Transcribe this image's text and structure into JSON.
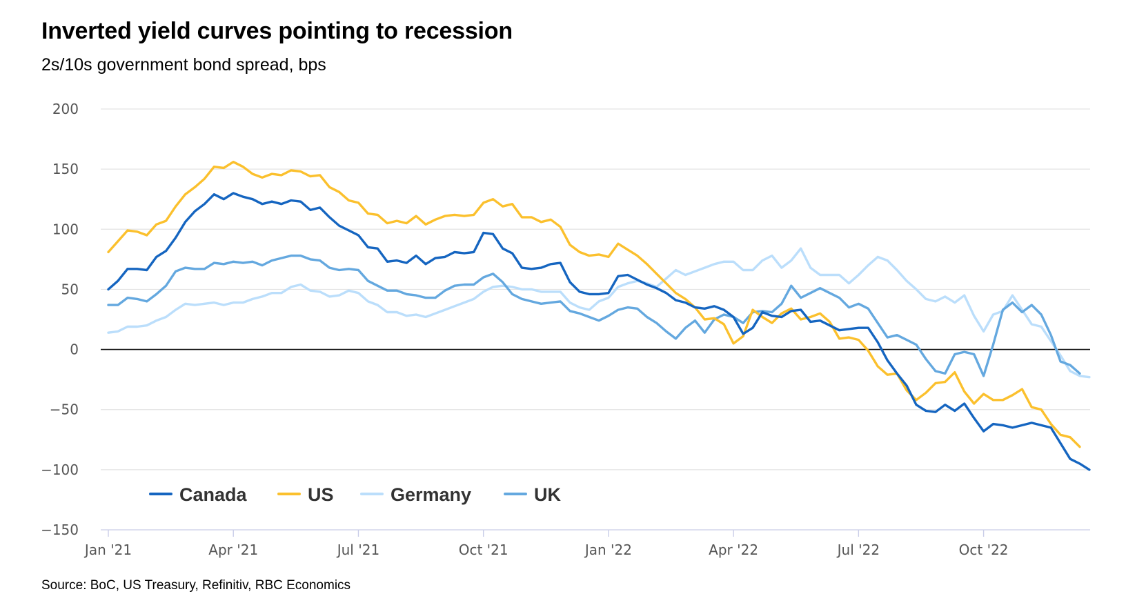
{
  "title": "Inverted yield curves pointing to recession",
  "subtitle": "2s/10s government bond spread, bps",
  "source": "Source: BoC, US Treasury, Refinitiv, RBC Economics",
  "chart_data": {
    "type": "line",
    "title": "Inverted yield curves pointing to recession",
    "subtitle": "2s/10s government bond spread, bps",
    "ylim": [
      -150,
      200
    ],
    "yticks": [
      -150,
      -100,
      -50,
      0,
      50,
      100,
      150,
      200
    ],
    "ytick_labels": [
      "−150",
      "−100",
      "−50",
      "0",
      "50",
      "100",
      "150",
      "200"
    ],
    "xlim": [
      0,
      101
    ],
    "xticks": [
      0,
      13,
      26,
      39,
      52,
      65,
      78,
      91
    ],
    "xtick_labels": [
      "Jan '21",
      "Apr '21",
      "Jul '21",
      "Oct '21",
      "Jan '22",
      "Apr '22",
      "Jul '22",
      "Oct '22"
    ],
    "x_unit": "weeks since Jan '21",
    "grid": true,
    "legend": "bottom-left",
    "series": [
      {
        "name": "Canada",
        "color": "#1565c0",
        "values": [
          50,
          57,
          67,
          67,
          66,
          77,
          82,
          93,
          106,
          115,
          121,
          129,
          125,
          130,
          127,
          125,
          121,
          123,
          121,
          124,
          123,
          116,
          118,
          110,
          103,
          99,
          95,
          85,
          84,
          73,
          74,
          72,
          78,
          71,
          76,
          77,
          81,
          80,
          81,
          97,
          96,
          84,
          80,
          68,
          67,
          68,
          71,
          72,
          56,
          48,
          46,
          46,
          47,
          61,
          62,
          58,
          54,
          51,
          47,
          41,
          39,
          35,
          34,
          36,
          33,
          27,
          13,
          18,
          31,
          28,
          27,
          32,
          33,
          23,
          24,
          20,
          16,
          17,
          18,
          18,
          6,
          -9,
          -20,
          -30,
          -46,
          -51,
          -52,
          -46,
          -51,
          -45,
          -57,
          -68,
          -62,
          -63,
          -65,
          -63,
          -61,
          -63,
          -65,
          -78,
          -91,
          -95,
          -100
        ]
      },
      {
        "name": "US",
        "color": "#fbc02d",
        "values": [
          81,
          90,
          99,
          98,
          95,
          104,
          107,
          119,
          129,
          135,
          142,
          152,
          151,
          156,
          152,
          146,
          143,
          146,
          145,
          149,
          148,
          144,
          145,
          135,
          131,
          124,
          122,
          113,
          112,
          105,
          107,
          105,
          111,
          104,
          108,
          111,
          112,
          111,
          112,
          122,
          125,
          119,
          121,
          110,
          110,
          106,
          108,
          102,
          87,
          81,
          78,
          79,
          77,
          88,
          83,
          78,
          71,
          63,
          55,
          47,
          42,
          35,
          25,
          26,
          21,
          5,
          11,
          33,
          27,
          22,
          30,
          34,
          25,
          27,
          30,
          23,
          9,
          10,
          8,
          -1,
          -14,
          -21,
          -20,
          -34,
          -42,
          -36,
          -28,
          -27,
          -19,
          -35,
          -45,
          -37,
          -42,
          -42,
          -38,
          -33,
          -48,
          -50,
          -62,
          -71,
          -73,
          -81
        ]
      },
      {
        "name": "Germany",
        "color": "#bbdefb",
        "values": [
          14,
          15,
          19,
          19,
          20,
          24,
          27,
          33,
          38,
          37,
          38,
          39,
          37,
          39,
          39,
          42,
          44,
          47,
          47,
          52,
          54,
          49,
          48,
          44,
          45,
          49,
          47,
          40,
          37,
          31,
          31,
          28,
          29,
          27,
          30,
          33,
          36,
          39,
          42,
          48,
          52,
          53,
          52,
          50,
          50,
          48,
          48,
          48,
          39,
          35,
          33,
          40,
          43,
          52,
          55,
          57,
          55,
          52,
          59,
          66,
          62,
          65,
          68,
          71,
          73,
          73,
          66,
          66,
          74,
          78,
          68,
          74,
          84,
          68,
          62,
          62,
          62,
          55,
          62,
          70,
          77,
          74,
          66,
          57,
          50,
          42,
          40,
          44,
          39,
          45,
          28,
          15,
          29,
          32,
          45,
          33,
          21,
          19,
          7,
          -5,
          -18,
          -22,
          -23
        ]
      },
      {
        "name": "UK",
        "color": "#64a8df",
        "values": [
          37,
          37,
          43,
          42,
          40,
          46,
          53,
          65,
          68,
          67,
          67,
          72,
          71,
          73,
          72,
          73,
          70,
          74,
          76,
          78,
          78,
          75,
          74,
          68,
          66,
          67,
          66,
          57,
          53,
          49,
          49,
          46,
          45,
          43,
          43,
          49,
          53,
          54,
          54,
          60,
          63,
          56,
          46,
          42,
          40,
          38,
          39,
          40,
          32,
          30,
          27,
          24,
          28,
          33,
          35,
          34,
          27,
          22,
          15,
          9,
          18,
          24,
          14,
          25,
          29,
          27,
          22,
          31,
          32,
          31,
          38,
          53,
          43,
          47,
          51,
          47,
          43,
          35,
          38,
          34,
          22,
          10,
          12,
          8,
          4,
          -8,
          -18,
          -20,
          -4,
          -2,
          -4,
          -22,
          4,
          33,
          39,
          31,
          37,
          29,
          12,
          -10,
          -13,
          -20
        ]
      }
    ]
  }
}
